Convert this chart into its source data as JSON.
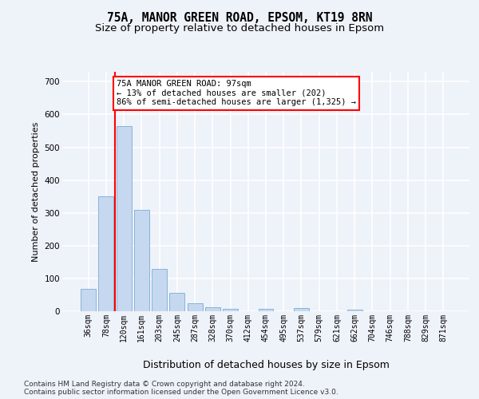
{
  "title1": "75A, MANOR GREEN ROAD, EPSOM, KT19 8RN",
  "title2": "Size of property relative to detached houses in Epsom",
  "xlabel": "Distribution of detached houses by size in Epsom",
  "ylabel": "Number of detached properties",
  "categories": [
    "36sqm",
    "78sqm",
    "120sqm",
    "161sqm",
    "203sqm",
    "245sqm",
    "287sqm",
    "328sqm",
    "370sqm",
    "412sqm",
    "454sqm",
    "495sqm",
    "537sqm",
    "579sqm",
    "621sqm",
    "662sqm",
    "704sqm",
    "746sqm",
    "788sqm",
    "829sqm",
    "871sqm"
  ],
  "values": [
    68,
    350,
    565,
    310,
    130,
    55,
    24,
    13,
    7,
    0,
    7,
    0,
    10,
    0,
    0,
    4,
    0,
    0,
    0,
    0,
    0
  ],
  "bar_color": "#c5d8f0",
  "bar_edge_color": "#7aadd4",
  "vline_x": 1.5,
  "vline_color": "red",
  "annotation_text": "75A MANOR GREEN ROAD: 97sqm\n← 13% of detached houses are smaller (202)\n86% of semi-detached houses are larger (1,325) →",
  "annotation_box_color": "white",
  "annotation_box_edge": "red",
  "ylim": [
    0,
    730
  ],
  "yticks": [
    0,
    100,
    200,
    300,
    400,
    500,
    600,
    700
  ],
  "footer1": "Contains HM Land Registry data © Crown copyright and database right 2024.",
  "footer2": "Contains public sector information licensed under the Open Government Licence v3.0.",
  "bg_color": "#eef2f9",
  "plot_bg_color": "#eef2f9",
  "grid_color": "white",
  "title1_fontsize": 10.5,
  "title2_fontsize": 9.5,
  "xlabel_fontsize": 9,
  "ylabel_fontsize": 8,
  "tick_fontsize": 7,
  "footer_fontsize": 6.5,
  "annot_fontsize": 7.5
}
